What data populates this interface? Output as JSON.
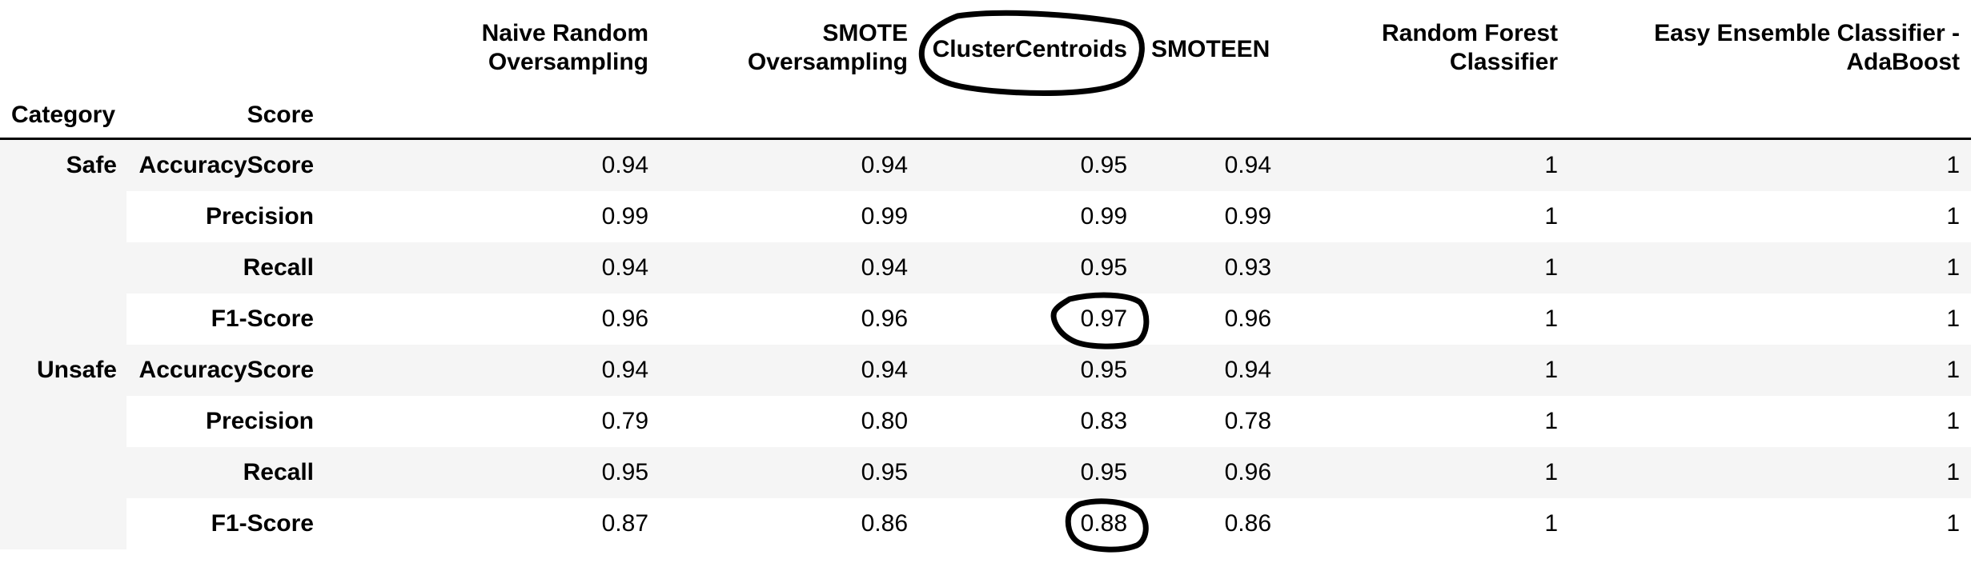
{
  "table": {
    "index_headers": [
      "Category",
      "Score"
    ],
    "columns": [
      "Naive Random\nOversampling",
      "SMOTE\nOversampling",
      "ClusterCentroids",
      "SMOTEEN",
      "Random Forest\nClassifier",
      "Easy Ensemble Classifier -\nAdaBoost"
    ],
    "groups": [
      {
        "category": "Safe",
        "rows": [
          {
            "score": "AccuracyScore",
            "values": [
              "0.94",
              "0.94",
              "0.95",
              "0.94",
              "1",
              "1"
            ]
          },
          {
            "score": "Precision",
            "values": [
              "0.99",
              "0.99",
              "0.99",
              "0.99",
              "1",
              "1"
            ]
          },
          {
            "score": "Recall",
            "values": [
              "0.94",
              "0.94",
              "0.95",
              "0.93",
              "1",
              "1"
            ]
          },
          {
            "score": "F1-Score",
            "values": [
              "0.96",
              "0.96",
              "0.97",
              "0.96",
              "1",
              "1"
            ]
          }
        ]
      },
      {
        "category": "Unsafe",
        "rows": [
          {
            "score": "AccuracyScore",
            "values": [
              "0.94",
              "0.94",
              "0.95",
              "0.94",
              "1",
              "1"
            ]
          },
          {
            "score": "Precision",
            "values": [
              "0.79",
              "0.80",
              "0.83",
              "0.78",
              "1",
              "1"
            ]
          },
          {
            "score": "Recall",
            "values": [
              "0.95",
              "0.95",
              "0.95",
              "0.96",
              "1",
              "1"
            ]
          },
          {
            "score": "F1-Score",
            "values": [
              "0.87",
              "0.86",
              "0.88",
              "0.86",
              "1",
              "1"
            ]
          }
        ]
      }
    ]
  },
  "colors": {
    "stripe": "#f5f5f5",
    "annotation": "#000000"
  }
}
